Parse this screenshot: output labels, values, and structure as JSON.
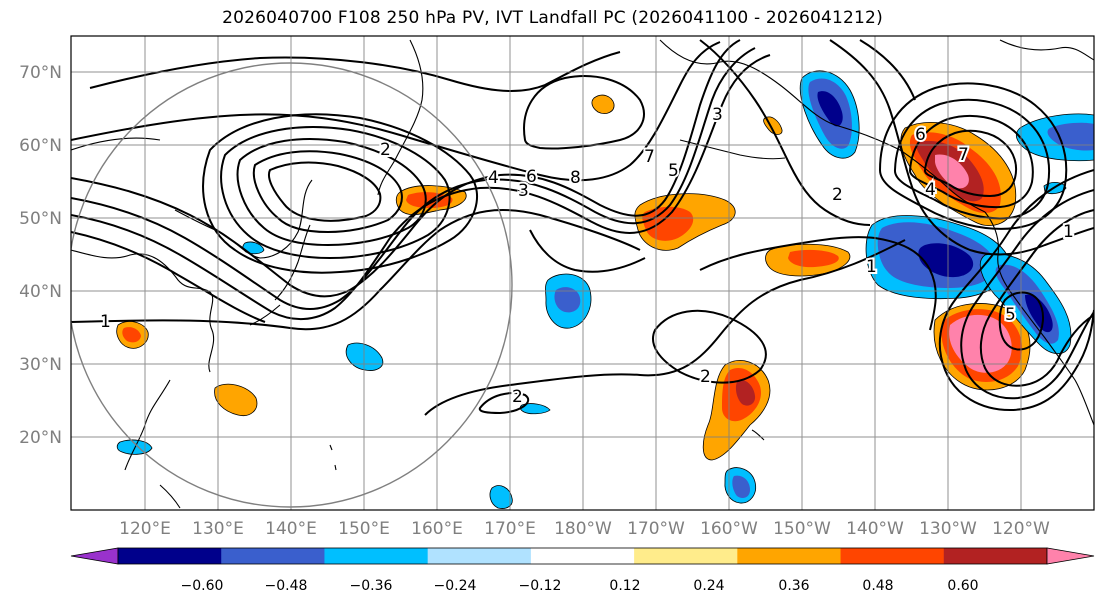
{
  "title": "2026040700 F108 250 hPa PV, IVT Landfall PC (2026041100 - 2026041212)",
  "map": {
    "lon_range": [
      110,
      -110
    ],
    "lat_range": [
      10,
      75
    ],
    "lat_labels": [
      "70°N",
      "60°N",
      "50°N",
      "40°N",
      "30°N",
      "20°N"
    ],
    "lon_labels": [
      "120°E",
      "130°E",
      "140°E",
      "150°E",
      "160°E",
      "170°E",
      "180°W",
      "170°W",
      "160°W",
      "150°W",
      "140°W",
      "130°W",
      "120°W"
    ],
    "contour_labels": [
      "1",
      "2",
      "3",
      "4",
      "5",
      "6",
      "7",
      "8",
      "2",
      "1",
      "2",
      "3",
      "4",
      "5",
      "6",
      "7",
      "1",
      "2"
    ]
  },
  "colorbar": {
    "tick_labels": [
      "−0.60",
      "−0.48",
      "−0.36",
      "−0.24",
      "−0.12",
      "0.12",
      "0.24",
      "0.36",
      "0.48",
      "0.60"
    ],
    "colors": [
      "#9932cc",
      "#00008b",
      "#3a5fcd",
      "#00bfff",
      "#b0e2ff",
      "#ffffff",
      "#ffec8b",
      "#ffa500",
      "#ff4500",
      "#b22222",
      "#ff82ab"
    ],
    "boundaries": [
      -0.72,
      -0.6,
      -0.48,
      -0.36,
      -0.24,
      -0.12,
      0.12,
      0.24,
      0.36,
      0.48,
      0.6,
      0.72
    ]
  }
}
